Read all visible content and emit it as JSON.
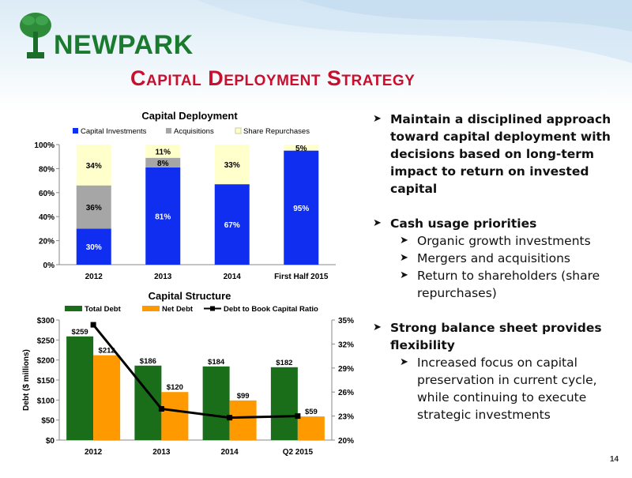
{
  "brand": {
    "name": "NEWPARK"
  },
  "slide": {
    "title": "Capital Deployment Strategy",
    "page_number": "14"
  },
  "bullets": [
    {
      "text": "Maintain a disciplined approach toward capital deployment with decisions based on long-term impact to return on invested capital",
      "subs": []
    },
    {
      "text": "Cash usage priorities",
      "subs": [
        "Organic growth investments",
        "Mergers and acquisitions",
        "Return to shareholders (share repurchases)"
      ]
    },
    {
      "text": "Strong balance sheet provides flexibility",
      "subs": [
        "Increased focus on capital preservation in current cycle, while continuing to execute strategic investments"
      ]
    }
  ],
  "chart_data": [
    {
      "type": "bar",
      "stacked": true,
      "percent": true,
      "title": "Capital Deployment",
      "categories": [
        "2012",
        "2013",
        "2014",
        "First Half 2015"
      ],
      "series": [
        {
          "name": "Capital Investments",
          "color": "#0f2ef0",
          "values": [
            30,
            81,
            67,
            95
          ],
          "labels": [
            "30%",
            "81%",
            "67%",
            "95%"
          ]
        },
        {
          "name": "Acquisitions",
          "color": "#a6a6a6",
          "values": [
            36,
            8,
            0,
            0
          ],
          "labels": [
            "36%",
            "8%",
            "",
            ""
          ]
        },
        {
          "name": "Share Repurchases",
          "color": "#ffffcc",
          "values": [
            34,
            11,
            33,
            5
          ],
          "labels": [
            "34%",
            "11%",
            "33%",
            "5%"
          ]
        }
      ],
      "ylim": [
        0,
        100
      ],
      "yticks": [
        0,
        20,
        40,
        60,
        80,
        100
      ],
      "ytick_labels": [
        "0%",
        "20%",
        "40%",
        "60%",
        "80%",
        "100%"
      ],
      "legend": "top",
      "grid": false
    },
    {
      "type": "bar",
      "title": "Capital Structure",
      "categories": [
        "2012",
        "2013",
        "2014",
        "Q2 2015"
      ],
      "ylabel": "Debt ($ millions)",
      "series": [
        {
          "name": "Total Debt",
          "type": "bar",
          "color": "#1a6e1a",
          "values": [
            259,
            186,
            184,
            182
          ],
          "labels": [
            "$259",
            "$186",
            "$184",
            "$182"
          ]
        },
        {
          "name": "Net Debt",
          "type": "bar",
          "color": "#ff9900",
          "values": [
            212,
            120,
            99,
            59
          ],
          "labels": [
            "$212",
            "$120",
            "$99",
            "$59"
          ]
        },
        {
          "name": "Debt to Book Capital Ratio",
          "type": "line",
          "axis": "right",
          "color": "#000000",
          "values": [
            34.4,
            23.9,
            22.8,
            23.0
          ]
        }
      ],
      "ylim": [
        0,
        300
      ],
      "yticks": [
        0,
        50,
        100,
        150,
        200,
        250,
        300
      ],
      "ytick_labels": [
        "$0",
        "$50",
        "$100",
        "$150",
        "$200",
        "$250",
        "$300"
      ],
      "y2lim": [
        20,
        35
      ],
      "y2ticks": [
        20,
        23,
        26,
        29,
        32,
        35
      ],
      "y2tick_labels": [
        "20%",
        "23%",
        "26%",
        "29%",
        "32%",
        "35%"
      ],
      "legend": "top",
      "grid": false
    }
  ]
}
